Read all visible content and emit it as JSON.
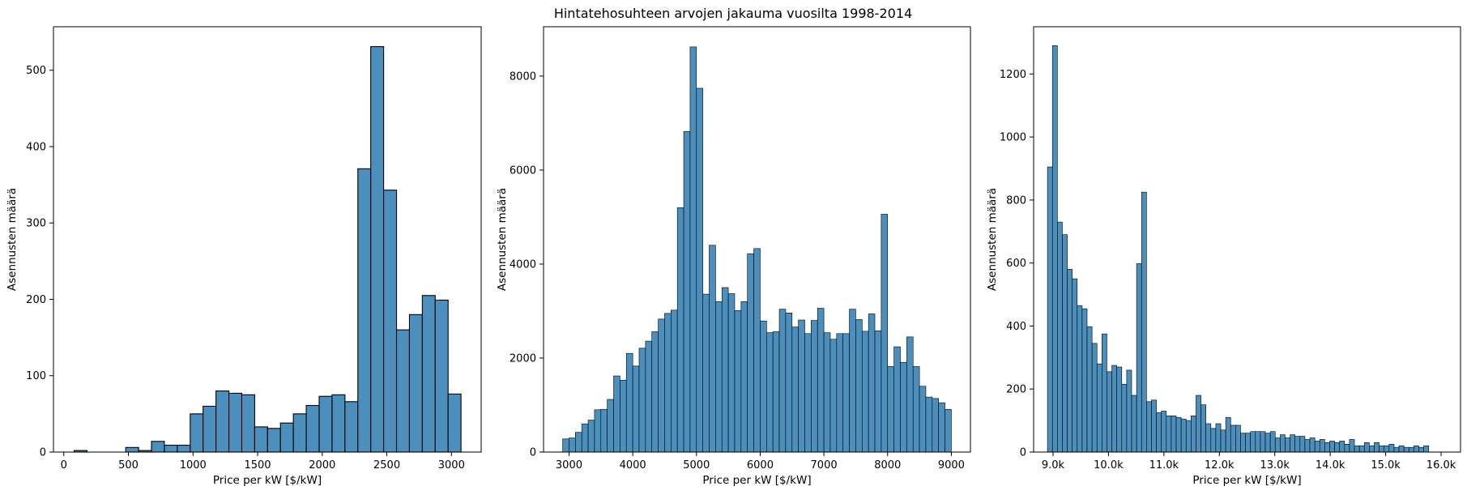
{
  "suptitle": "Hintatehosuhteen arvojen jakauma vuosilta 1998-2014",
  "colors": {
    "bar_fill": "#4c8fbd",
    "bar_edge": "#000000",
    "axes": "#000000"
  },
  "chart_data": [
    {
      "type": "bar",
      "histogram": true,
      "xlabel": "Price per kW [$/kW]",
      "ylabel": "Asennusten määrä",
      "xlim": [
        -80,
        3230
      ],
      "ylim": [
        0,
        557
      ],
      "xticks": [
        0,
        500,
        1000,
        1500,
        2000,
        2500,
        3000
      ],
      "xtick_labels": [
        "0",
        "500",
        "1000",
        "1500",
        "2000",
        "2500",
        "3000"
      ],
      "yticks": [
        0,
        100,
        200,
        300,
        400,
        500
      ],
      "ytick_labels": [
        "0",
        "100",
        "200",
        "300",
        "400",
        "500"
      ],
      "bin_start": 80,
      "bin_width": 99.8,
      "values": [
        2,
        0,
        0,
        0,
        6,
        2,
        14,
        9,
        9,
        50,
        60,
        80,
        77,
        75,
        33,
        31,
        38,
        50,
        61,
        73,
        75,
        66,
        371,
        531,
        343,
        160,
        180,
        205,
        199,
        76
      ]
    },
    {
      "type": "bar",
      "histogram": true,
      "xlabel": "Price per kW [$/kW]",
      "ylabel": "Asennusten määrä",
      "xlim": [
        2600,
        9300
      ],
      "ylim": [
        0,
        9050
      ],
      "xticks": [
        3000,
        4000,
        5000,
        6000,
        7000,
        8000,
        9000
      ],
      "xtick_labels": [
        "3000",
        "4000",
        "5000",
        "6000",
        "7000",
        "8000",
        "9000"
      ],
      "yticks": [
        0,
        2000,
        4000,
        6000,
        8000
      ],
      "ytick_labels": [
        "0",
        "2000",
        "4000",
        "6000",
        "8000"
      ],
      "bin_start": 2900,
      "bin_width": 100,
      "values": [
        280,
        300,
        420,
        600,
        680,
        900,
        910,
        1120,
        1620,
        1530,
        2100,
        1830,
        2210,
        2360,
        2560,
        2830,
        2950,
        3020,
        5200,
        6820,
        8620,
        7740,
        3360,
        4400,
        3200,
        3500,
        3370,
        3010,
        3200,
        4220,
        4330,
        2790,
        2540,
        2560,
        3040,
        2960,
        2660,
        2810,
        2520,
        2800,
        3060,
        2540,
        2400,
        2520,
        2520,
        3040,
        2820,
        2570,
        2940,
        2580,
        5060,
        1820,
        2240,
        1910,
        2450,
        1820,
        1400,
        1170,
        1140,
        1050,
        910
      ]
    },
    {
      "type": "bar",
      "histogram": true,
      "xlabel": "Price per kW [$/kW]",
      "ylabel": "Asennusten määrä",
      "xlim": [
        8650,
        16350
      ],
      "ylim": [
        0,
        1350
      ],
      "xticks": [
        9000,
        10000,
        11000,
        12000,
        13000,
        14000,
        15000,
        16000
      ],
      "xtick_labels": [
        "9.0k",
        "10.0k",
        "11.0k",
        "12.0k",
        "13.0k",
        "14.0k",
        "15.0k",
        "16.0k"
      ],
      "yticks": [
        0,
        200,
        400,
        600,
        800,
        1000,
        1200
      ],
      "ytick_labels": [
        "0",
        "200",
        "400",
        "600",
        "800",
        "1000",
        "1200"
      ],
      "bin_start": 8900,
      "bin_width": 89.3,
      "values": [
        905,
        1290,
        730,
        690,
        580,
        550,
        465,
        455,
        398,
        345,
        280,
        375,
        255,
        275,
        270,
        215,
        260,
        180,
        598,
        825,
        160,
        165,
        125,
        130,
        115,
        115,
        110,
        105,
        100,
        115,
        180,
        150,
        90,
        75,
        90,
        70,
        110,
        85,
        85,
        60,
        60,
        65,
        65,
        65,
        60,
        65,
        45,
        55,
        45,
        55,
        50,
        50,
        40,
        45,
        35,
        40,
        30,
        35,
        30,
        35,
        25,
        40,
        20,
        20,
        30,
        20,
        30,
        20,
        20,
        25,
        15,
        20,
        15,
        15,
        20,
        15,
        20
      ]
    }
  ]
}
